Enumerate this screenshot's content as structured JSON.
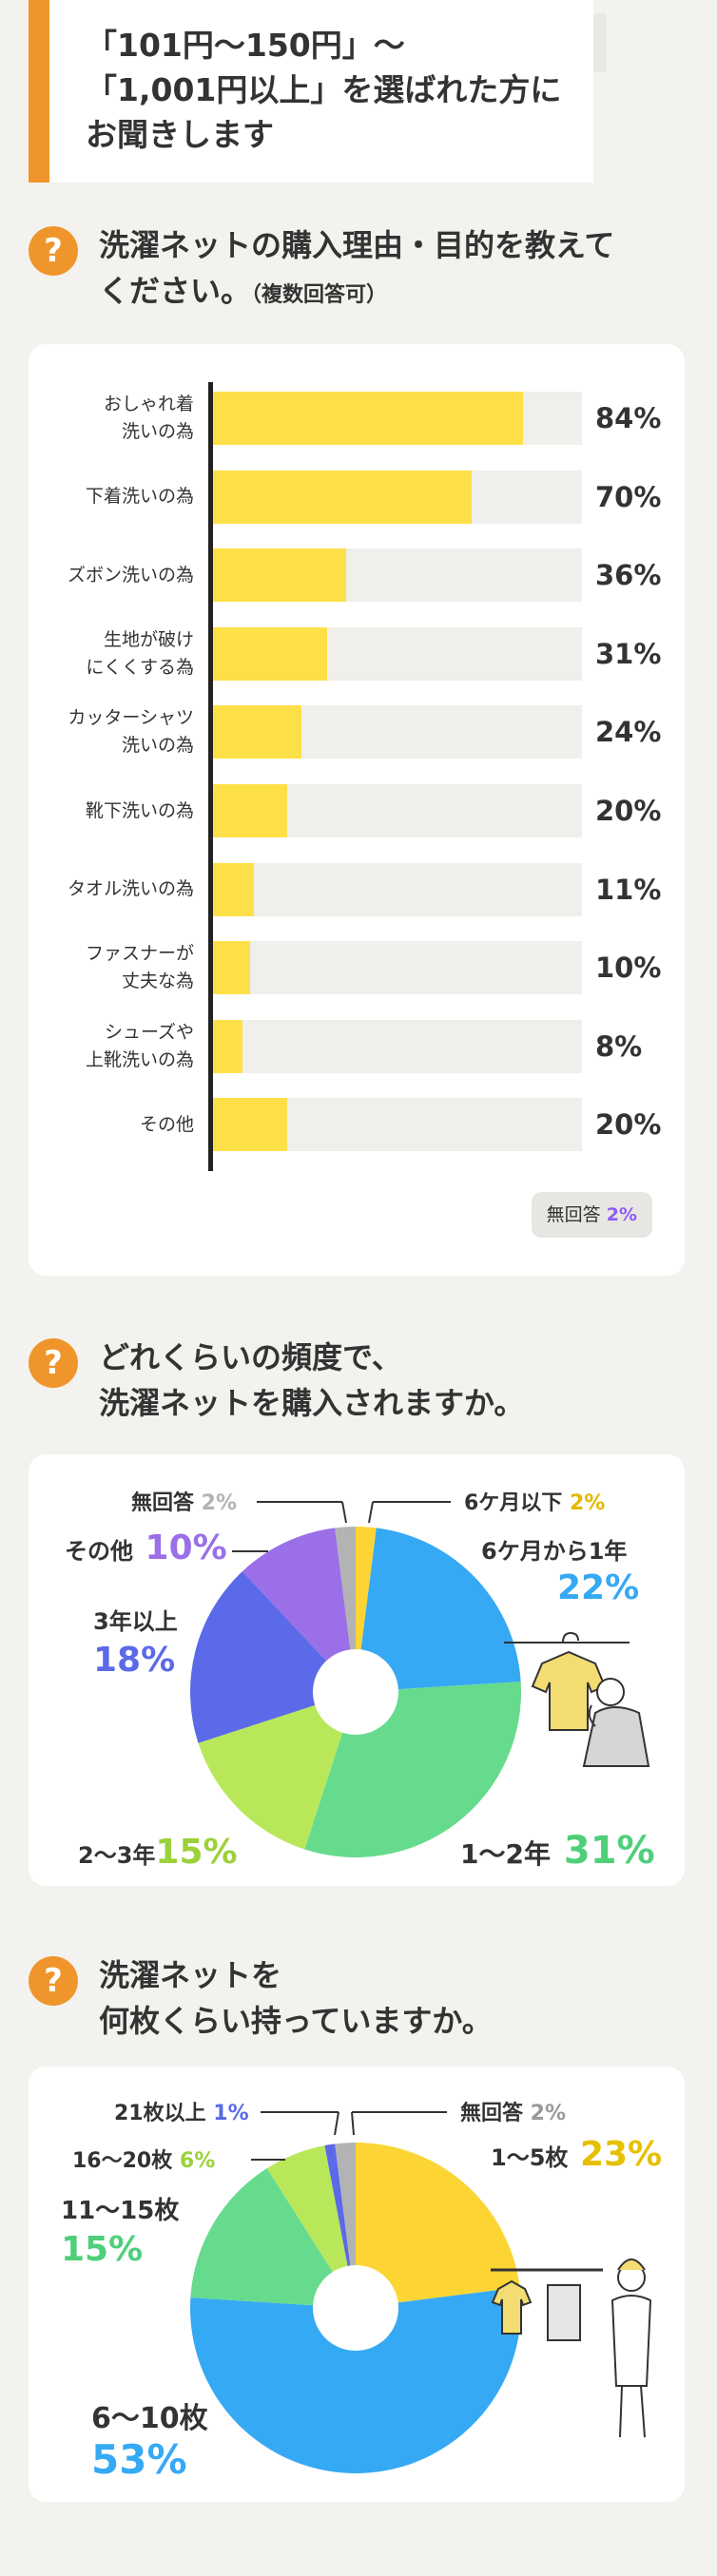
{
  "header": {
    "lines": [
      "「101円〜150円」〜",
      "「1,001円以上」を選ばれた方に",
      "お聞きします"
    ]
  },
  "q1": {
    "badge": "?",
    "title_line1": "洗濯ネットの購入理由・目的を教えて",
    "title_line2": "ください。",
    "note": "（複数回答可）",
    "no_answer_label": "無回答",
    "no_answer_value": "2%"
  },
  "q2": {
    "badge": "?",
    "title_line1": "どれくらいの頻度で、",
    "title_line2": "洗濯ネットを購入されますか。"
  },
  "q3": {
    "badge": "?",
    "title_line1": "洗濯ネットを",
    "title_line2": "何枚くらい持っていますか。"
  },
  "colors": {
    "accent": "#f0952b",
    "bar": "#fde047",
    "track": "#f1efeb",
    "yellow": "#fcd535",
    "blue": "#36a9f4",
    "green": "#66db8e",
    "lime": "#b8e85a",
    "indigo": "#5b6ae8",
    "purple": "#9b6fe8",
    "gray": "#b3b3b3"
  },
  "chart_data": [
    {
      "type": "bar",
      "orientation": "horizontal",
      "title": "洗濯ネットの購入理由・目的を教えてください。（複数回答可）",
      "categories": [
        "おしゃれ着\n洗いの為",
        "下着洗いの為",
        "ズボン洗いの為",
        "生地が破け\nにくくする為",
        "カッターシャツ\n洗いの為",
        "靴下洗いの為",
        "タオル洗いの為",
        "ファスナーが\n丈夫な為",
        "シューズや\n上靴洗いの為",
        "その他"
      ],
      "values": [
        84,
        70,
        36,
        31,
        24,
        20,
        11,
        10,
        8,
        20
      ],
      "value_labels": [
        "84%",
        "70%",
        "36%",
        "31%",
        "24%",
        "20%",
        "11%",
        "10%",
        "8%",
        "20%"
      ],
      "xlim": [
        0,
        100
      ],
      "unit": "%"
    },
    {
      "type": "pie",
      "donut": true,
      "title": "どれくらいの頻度で、洗濯ネットを購入されますか。",
      "slices": [
        {
          "name": "6ケ月以下",
          "value": 2,
          "label": "2%",
          "color": "#fcd535"
        },
        {
          "name": "6ケ月から1年",
          "value": 22,
          "label": "22%",
          "color": "#36a9f4"
        },
        {
          "name": "1〜2年",
          "value": 31,
          "label": "31%",
          "color": "#66db8e"
        },
        {
          "name": "2〜3年",
          "value": 15,
          "label": "15%",
          "color": "#b8e85a"
        },
        {
          "name": "3年以上",
          "value": 18,
          "label": "18%",
          "color": "#5b6ae8"
        },
        {
          "name": "その他",
          "value": 10,
          "label": "10%",
          "color": "#9b6fe8"
        },
        {
          "name": "無回答",
          "value": 2,
          "label": "2%",
          "color": "#b3b3b3"
        }
      ]
    },
    {
      "type": "pie",
      "donut": true,
      "title": "洗濯ネットを何枚くらい持っていますか。",
      "slices": [
        {
          "name": "1〜5枚",
          "value": 23,
          "label": "23%",
          "color": "#fcd535"
        },
        {
          "name": "6〜10枚",
          "value": 53,
          "label": "53%",
          "color": "#36a9f4"
        },
        {
          "name": "11〜15枚",
          "value": 15,
          "label": "15%",
          "color": "#66db8e"
        },
        {
          "name": "16〜20枚",
          "value": 6,
          "label": "6%",
          "color": "#b8e85a"
        },
        {
          "name": "21枚以上",
          "value": 1,
          "label": "1%",
          "color": "#5b6ae8"
        },
        {
          "name": "無回答",
          "value": 2,
          "label": "2%",
          "color": "#b3b3b3"
        }
      ]
    }
  ]
}
